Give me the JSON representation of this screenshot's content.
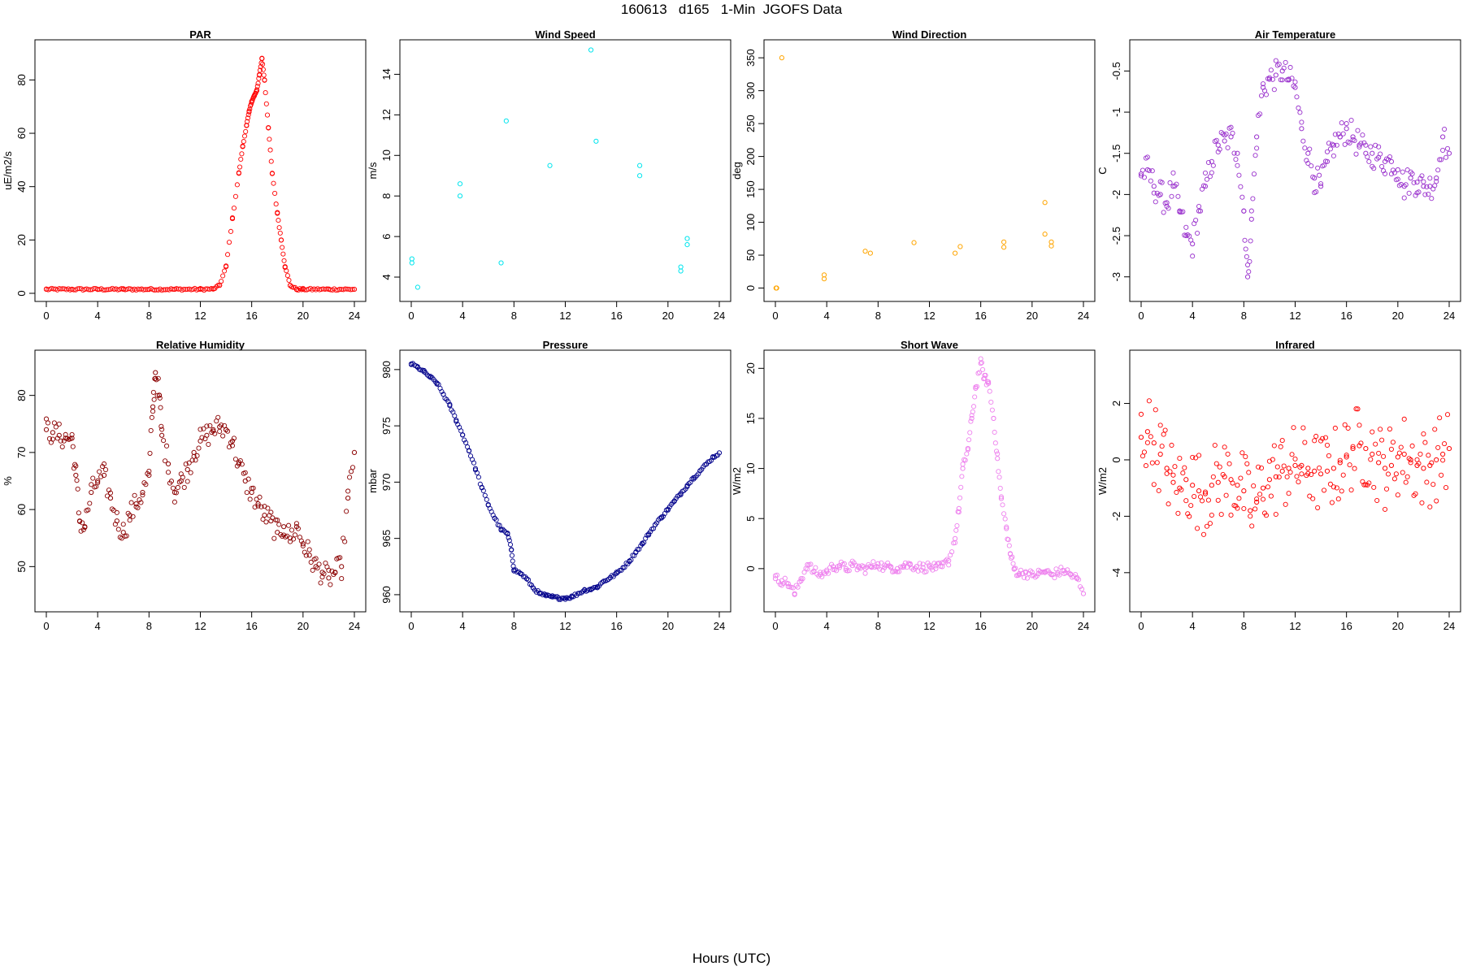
{
  "figure": {
    "title": "160613   d165   1-Min  JGOFS Data",
    "xlabel": "Hours (UTC)"
  },
  "chart_data": [
    {
      "type": "scatter",
      "title": "PAR",
      "ylabel": "uE/m2/s",
      "color": "#ff0000",
      "xlim": [
        0,
        24
      ],
      "ylim": [
        0,
        92
      ],
      "xticks": [
        0,
        4,
        8,
        12,
        16,
        20,
        24
      ],
      "yticks": [
        0,
        20,
        40,
        60,
        80
      ],
      "x": [
        0,
        2,
        4,
        6,
        8,
        10,
        12,
        13,
        13.5,
        14,
        14.5,
        15,
        15.3,
        15.6,
        15.8,
        16,
        16.2,
        16.4,
        16.6,
        16.8,
        17,
        17.3,
        17.6,
        18,
        18.3,
        18.6,
        19,
        19.5,
        20,
        22,
        24
      ],
      "y": [
        1.5,
        1.5,
        1.5,
        1.5,
        1.5,
        1.5,
        1.5,
        1.6,
        3,
        10,
        28,
        45,
        55,
        63,
        68,
        72,
        74,
        76,
        82,
        88,
        80,
        62,
        45,
        30,
        20,
        10,
        3,
        1.5,
        1.5,
        1.5,
        1.5
      ]
    },
    {
      "type": "scatter",
      "title": "Wind Speed",
      "ylabel": "m/s",
      "color": "#00e5ee",
      "xlim": [
        0,
        24
      ],
      "ylim": [
        3.2,
        15.3
      ],
      "xticks": [
        0,
        4,
        8,
        12,
        16,
        20,
        24
      ],
      "yticks": [
        4,
        6,
        8,
        10,
        12,
        14
      ],
      "x": [
        0.05,
        0.05,
        0.5,
        3.8,
        3.8,
        7.0,
        7.4,
        10.8,
        14.0,
        14.4,
        17.8,
        17.8,
        21.0,
        21.0,
        21.5,
        21.5
      ],
      "y": [
        4.9,
        4.7,
        3.5,
        8.6,
        8.0,
        4.7,
        11.7,
        9.5,
        15.2,
        10.7,
        9.5,
        9.0,
        4.5,
        4.3,
        5.9,
        5.6
      ]
    },
    {
      "type": "scatter",
      "title": "Wind Direction",
      "ylabel": "deg",
      "color": "#ffa500",
      "xlim": [
        0,
        24
      ],
      "ylim": [
        -8,
        365
      ],
      "xticks": [
        0,
        4,
        8,
        12,
        16,
        20,
        24
      ],
      "yticks": [
        0,
        50,
        100,
        150,
        200,
        250,
        300,
        350
      ],
      "x": [
        0.05,
        0.1,
        0.5,
        3.8,
        3.8,
        7.0,
        7.4,
        10.8,
        14.0,
        14.4,
        17.8,
        17.8,
        21.0,
        21.0,
        21.5,
        21.5
      ],
      "y": [
        0,
        0,
        350,
        20,
        14,
        56,
        53,
        69,
        53,
        63,
        70,
        62,
        130,
        82,
        70,
        64
      ]
    },
    {
      "type": "scatter",
      "title": "Air Temperature",
      "ylabel": "C",
      "color": "#9a32cd",
      "xlim": [
        0,
        24
      ],
      "ylim": [
        -3.2,
        -0.22
      ],
      "xticks": [
        0,
        4,
        8,
        12,
        16,
        20,
        24
      ],
      "yticks": [
        -3.0,
        -2.5,
        -2.0,
        -1.5,
        -1.0,
        -0.5
      ],
      "x": [
        0,
        0.5,
        1,
        1.5,
        2,
        2.5,
        3,
        3.5,
        4,
        4.5,
        5,
        5.5,
        6,
        6.5,
        7,
        7.5,
        8,
        8.3,
        8.6,
        9,
        9.5,
        10,
        10.5,
        11,
        11.5,
        12,
        12.5,
        13,
        13.5,
        14,
        14.5,
        15,
        15.5,
        16,
        16.5,
        17,
        17.5,
        18,
        18.5,
        19,
        19.5,
        20,
        20.5,
        21,
        21.5,
        22,
        22.5,
        23,
        23.5,
        24
      ],
      "y": [
        -1.75,
        -1.7,
        -1.9,
        -2.0,
        -2.1,
        -1.9,
        -2.2,
        -2.5,
        -2.6,
        -2.2,
        -1.9,
        -1.6,
        -1.4,
        -1.35,
        -1.3,
        -1.5,
        -2.2,
        -3.0,
        -2.3,
        -1.3,
        -0.7,
        -0.6,
        -0.55,
        -0.5,
        -0.6,
        -0.7,
        -1.2,
        -1.5,
        -1.8,
        -1.9,
        -1.6,
        -1.4,
        -1.3,
        -1.2,
        -1.3,
        -1.4,
        -1.5,
        -1.5,
        -1.55,
        -1.6,
        -1.6,
        -1.7,
        -1.9,
        -1.8,
        -1.85,
        -1.9,
        -1.9,
        -1.8,
        -1.3,
        -1.5
      ]
    },
    {
      "type": "scatter",
      "title": "Relative Humidity",
      "ylabel": "%",
      "color": "#8b0000",
      "xlim": [
        0,
        24
      ],
      "ylim": [
        43.5,
        86.5
      ],
      "xticks": [
        0,
        4,
        8,
        12,
        16,
        20,
        24
      ],
      "yticks": [
        50,
        60,
        70,
        80
      ],
      "x": [
        0,
        0.5,
        1,
        1.5,
        2,
        2.3,
        2.6,
        3,
        3.5,
        4,
        4.5,
        5,
        5.5,
        6,
        6.5,
        7,
        7.5,
        8,
        8.3,
        8.5,
        8.8,
        9,
        9.5,
        10,
        10.5,
        11,
        11.5,
        12,
        12.5,
        13,
        13.5,
        14,
        14.5,
        15,
        15.5,
        16,
        16.5,
        17,
        17.5,
        18,
        18.5,
        19,
        19.5,
        20,
        20.5,
        21,
        21.5,
        22,
        22.5,
        23,
        23.5,
        24
      ],
      "y": [
        74,
        73.5,
        73,
        72.5,
        72.5,
        66,
        58,
        57,
        63,
        65,
        66,
        62,
        58,
        56,
        59,
        61,
        63,
        66,
        78,
        84,
        80,
        73,
        68,
        63,
        65,
        67,
        70,
        72,
        73,
        74,
        74.5,
        74,
        72,
        68,
        65,
        63,
        61,
        59,
        58,
        56,
        57,
        55,
        57,
        54,
        52,
        50,
        49,
        48,
        49,
        50,
        62,
        70
      ]
    },
    {
      "type": "scatter",
      "title": "Pressure",
      "ylabel": "mbar",
      "color": "#00008b",
      "xlim": [
        0,
        24
      ],
      "ylim": [
        959.2,
        981.0
      ],
      "xticks": [
        0,
        4,
        8,
        12,
        16,
        20,
        24
      ],
      "yticks": [
        960,
        965,
        970,
        975,
        980
      ],
      "x": [
        0,
        0.5,
        1,
        1.5,
        2,
        2.5,
        3,
        3.5,
        4,
        4.5,
        5,
        5.5,
        6,
        6.5,
        7,
        7.5,
        7.8,
        8,
        8.5,
        9,
        9.5,
        10,
        10.5,
        11,
        11.5,
        12,
        12.5,
        13,
        13.5,
        14,
        14.5,
        15,
        15.5,
        16,
        16.5,
        17,
        17.5,
        18,
        18.5,
        19,
        19.5,
        20,
        20.5,
        21,
        21.5,
        22,
        22.5,
        23,
        23.5,
        24
      ],
      "y": [
        980.5,
        980.2,
        979.8,
        979.3,
        978.8,
        977.8,
        976.8,
        975.5,
        974.2,
        972.8,
        971.2,
        969.5,
        968.0,
        966.8,
        965.8,
        965.4,
        964.0,
        962.2,
        961.9,
        961.4,
        960.6,
        960.1,
        959.9,
        959.8,
        959.7,
        959.7,
        959.8,
        960.1,
        960.4,
        960.5,
        960.7,
        961.2,
        961.5,
        961.9,
        962.4,
        963.0,
        963.8,
        964.5,
        965.4,
        966.2,
        966.9,
        967.6,
        968.3,
        969.0,
        969.7,
        970.4,
        971.0,
        971.6,
        972.2,
        972.6
      ]
    },
    {
      "type": "scatter",
      "title": "Short Wave",
      "ylabel": "W/m2",
      "color": "#ee82ee",
      "xlim": [
        0,
        24
      ],
      "ylim": [
        -3.5,
        21.0
      ],
      "xticks": [
        0,
        4,
        8,
        12,
        16,
        20,
        24
      ],
      "yticks": [
        0,
        5,
        10,
        15,
        20
      ],
      "x": [
        0,
        0.5,
        1,
        1.5,
        2,
        2.5,
        3,
        3.5,
        4,
        4.5,
        5,
        5.5,
        6,
        6.5,
        7,
        7.5,
        8,
        8.5,
        9,
        9.5,
        10,
        10.5,
        11,
        11.5,
        12,
        12.5,
        13,
        13.5,
        14,
        14.3,
        14.6,
        15,
        15.3,
        15.6,
        16,
        16.3,
        16.6,
        17,
        17.3,
        17.6,
        18,
        18.3,
        18.6,
        19,
        19.5,
        20,
        20.5,
        21,
        21.5,
        22,
        22.5,
        23,
        23.5,
        24
      ],
      "y": [
        -1,
        -1.2,
        -1.5,
        -2.5,
        -1,
        0.4,
        -0.3,
        -0.6,
        -0.3,
        0.2,
        0.3,
        0.0,
        0.3,
        0.1,
        0.0,
        0.2,
        0.5,
        0.1,
        0.2,
        0.0,
        0.3,
        0.4,
        0.2,
        0.1,
        0.2,
        0.0,
        0.2,
        0.8,
        3,
        6,
        10,
        12,
        15,
        18,
        20.5,
        19,
        18.5,
        15,
        11,
        7,
        4,
        1.5,
        0,
        -0.5,
        -0.4,
        -0.7,
        -0.5,
        -0.3,
        -0.6,
        -0.4,
        -0.2,
        -0.6,
        -1.0,
        -2.5
      ]
    },
    {
      "type": "scatter",
      "title": "Infrared",
      "ylabel": "W/m2",
      "color": "#ff0000",
      "xlim": [
        0,
        24
      ],
      "ylim": [
        -5.1,
        3.6
      ],
      "xticks": [
        0,
        4,
        8,
        12,
        16,
        20,
        24
      ],
      "yticks": [
        -4,
        -2,
        0,
        2
      ],
      "x": [
        0,
        0.5,
        1,
        1.5,
        2,
        2.5,
        3,
        3.5,
        4,
        4.5,
        5,
        5.5,
        6,
        6.5,
        7,
        7.5,
        8,
        8.5,
        9,
        9.5,
        10,
        10.5,
        11,
        11.5,
        12,
        12.5,
        13,
        13.5,
        14,
        14.5,
        15,
        15.5,
        16,
        16.5,
        17,
        17.5,
        18,
        18.5,
        19,
        19.5,
        20,
        20.5,
        21,
        21.5,
        22,
        22.5,
        23,
        23.5,
        24
      ],
      "y": [
        0.8,
        1.0,
        0.6,
        0.2,
        -0.3,
        -0.8,
        -1.0,
        -0.7,
        -0.9,
        -1.1,
        -1.2,
        -0.9,
        -0.8,
        -0.6,
        -0.7,
        -0.9,
        -1.1,
        -1.8,
        -1.5,
        -1.0,
        -0.7,
        -0.6,
        -0.4,
        -0.3,
        -0.2,
        -0.2,
        -0.3,
        -0.4,
        -0.5,
        -0.4,
        -0.3,
        -0.1,
        0.1,
        0.4,
        0.5,
        0.4,
        0.2,
        -0.1,
        -0.3,
        -0.2,
        0.1,
        0.2,
        0.0,
        -0.2,
        -0.3,
        -0.2,
        0.0,
        0.2,
        0.4
      ]
    }
  ]
}
